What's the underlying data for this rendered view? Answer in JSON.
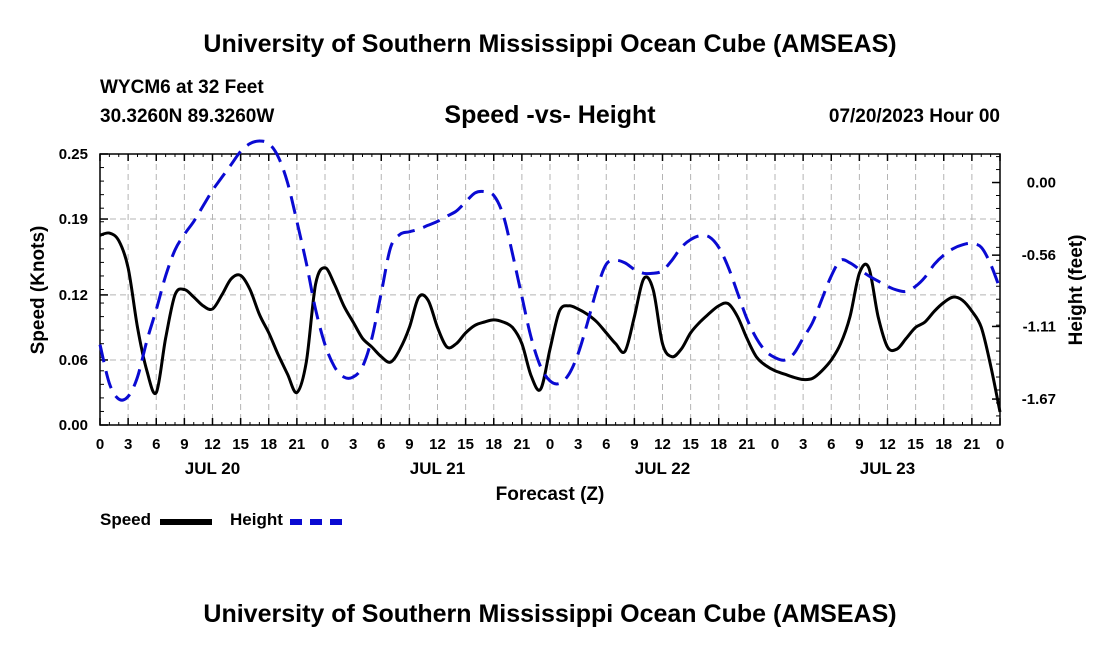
{
  "header": {
    "title": "University of Southern Mississippi Ocean Cube (AMSEAS)",
    "station": "WYCM6 at 32 Feet",
    "coords": "30.3260N  89.3260W",
    "subtitle": "Speed -vs- Height",
    "run_date": "07/20/2023 Hour 00"
  },
  "footer": {
    "title": "University of Southern Mississippi Ocean Cube (AMSEAS)"
  },
  "legend": {
    "speed_label": "Speed",
    "height_label": "Height"
  },
  "colors": {
    "speed": "#000000",
    "height": "#0a0ad2",
    "grid": "#b4b4b4"
  },
  "chart_data": {
    "type": "line",
    "title": "Speed -vs- Height",
    "xlabel": "Forecast (Z)",
    "ylabel": "Speed (Knots)",
    "ylabel_right": "Height (feet)",
    "xlim": [
      0,
      96
    ],
    "ylim": [
      0,
      0.25
    ],
    "ylim_right": [
      -1.87,
      0.22
    ],
    "grid": true,
    "legend_position": "bottom-left",
    "x_ticks": [
      0,
      3,
      6,
      9,
      12,
      15,
      18,
      21,
      24,
      27,
      30,
      33,
      36,
      39,
      42,
      45,
      48,
      51,
      54,
      57,
      60,
      63,
      66,
      69,
      72,
      75,
      78,
      81,
      84,
      87,
      90,
      93,
      96
    ],
    "x_tick_labels": [
      "0",
      "3",
      "6",
      "9",
      "12",
      "15",
      "18",
      "21",
      "0",
      "3",
      "6",
      "9",
      "12",
      "15",
      "18",
      "21",
      "0",
      "3",
      "6",
      "9",
      "12",
      "15",
      "18",
      "21",
      "0",
      "3",
      "6",
      "9",
      "12",
      "15",
      "18",
      "21",
      "0"
    ],
    "day_labels": [
      {
        "x": 12,
        "label": "JUL 20"
      },
      {
        "x": 36,
        "label": "JUL 21"
      },
      {
        "x": 60,
        "label": "JUL 22"
      },
      {
        "x": 84,
        "label": "JUL 23"
      }
    ],
    "y_ticks": [
      0,
      0.06,
      0.12,
      0.19,
      0.25
    ],
    "y_tick_labels": [
      "0.00",
      "0.06",
      "0.12",
      "0.19",
      "0.25"
    ],
    "y_right_ticks": [
      0,
      -0.56,
      -1.11,
      -1.67
    ],
    "y_right_tick_labels": [
      "0.00",
      "-0.56",
      "-1.11",
      "-1.67"
    ],
    "series": [
      {
        "name": "Speed",
        "axis": "left",
        "style": "solid",
        "x": [
          0,
          1,
          2,
          3,
          4,
          5,
          6,
          7,
          8,
          9,
          10,
          11,
          12,
          13,
          14,
          15,
          16,
          17,
          18,
          19,
          20,
          21,
          22,
          23,
          24,
          25,
          26,
          27,
          28,
          29,
          30,
          31,
          32,
          33,
          34,
          35,
          36,
          37,
          38,
          39,
          40,
          41,
          42,
          43,
          44,
          45,
          46,
          47,
          48,
          49,
          50,
          51,
          52,
          53,
          54,
          55,
          56,
          57,
          58,
          59,
          60,
          61,
          62,
          63,
          64,
          65,
          66,
          67,
          68,
          69,
          70,
          71,
          72,
          73,
          74,
          75,
          76,
          77,
          78,
          79,
          80,
          81,
          82,
          83,
          84,
          85,
          86,
          87,
          88,
          89,
          90,
          91,
          92,
          93,
          94,
          95,
          96
        ],
        "values": [
          0.175,
          0.177,
          0.17,
          0.145,
          0.09,
          0.05,
          0.03,
          0.08,
          0.12,
          0.125,
          0.118,
          0.11,
          0.107,
          0.12,
          0.135,
          0.138,
          0.125,
          0.102,
          0.085,
          0.065,
          0.047,
          0.03,
          0.058,
          0.13,
          0.145,
          0.13,
          0.11,
          0.095,
          0.08,
          0.072,
          0.063,
          0.058,
          0.07,
          0.09,
          0.118,
          0.115,
          0.09,
          0.072,
          0.075,
          0.085,
          0.092,
          0.095,
          0.097,
          0.095,
          0.09,
          0.075,
          0.045,
          0.033,
          0.07,
          0.105,
          0.11,
          0.107,
          0.102,
          0.095,
          0.085,
          0.075,
          0.068,
          0.1,
          0.135,
          0.125,
          0.075,
          0.063,
          0.07,
          0.085,
          0.095,
          0.103,
          0.11,
          0.112,
          0.1,
          0.08,
          0.063,
          0.055,
          0.05,
          0.047,
          0.044,
          0.042,
          0.043,
          0.05,
          0.06,
          0.075,
          0.1,
          0.14,
          0.145,
          0.1,
          0.072,
          0.07,
          0.08,
          0.09,
          0.095,
          0.105,
          0.113,
          0.118,
          0.115,
          0.105,
          0.09,
          0.055,
          0.012
        ]
      },
      {
        "name": "Height",
        "axis": "right",
        "style": "dashed",
        "x": [
          0,
          1,
          2,
          3,
          4,
          5,
          6,
          7,
          8,
          9,
          10,
          11,
          12,
          13,
          14,
          15,
          16,
          17,
          18,
          19,
          20,
          21,
          22,
          23,
          24,
          25,
          26,
          27,
          28,
          29,
          30,
          31,
          32,
          33,
          34,
          35,
          36,
          37,
          38,
          39,
          40,
          41,
          42,
          43,
          44,
          45,
          46,
          47,
          48,
          49,
          50,
          51,
          52,
          53,
          54,
          55,
          56,
          57,
          58,
          59,
          60,
          61,
          62,
          63,
          64,
          65,
          66,
          67,
          68,
          69,
          70,
          71,
          72,
          73,
          74,
          75,
          76,
          77,
          78,
          79,
          80,
          81,
          82,
          83,
          84,
          85,
          86,
          87,
          88,
          89,
          90,
          91,
          92,
          93,
          94,
          95,
          96
        ],
        "values": [
          -1.25,
          -1.55,
          -1.67,
          -1.65,
          -1.5,
          -1.22,
          -0.98,
          -0.72,
          -0.52,
          -0.4,
          -0.3,
          -0.18,
          -0.06,
          0.04,
          0.14,
          0.24,
          0.3,
          0.32,
          0.3,
          0.2,
          0.0,
          -0.3,
          -0.62,
          -0.98,
          -1.25,
          -1.42,
          -1.5,
          -1.5,
          -1.42,
          -1.2,
          -0.85,
          -0.5,
          -0.4,
          -0.38,
          -0.36,
          -0.33,
          -0.3,
          -0.26,
          -0.22,
          -0.15,
          -0.08,
          -0.07,
          -0.1,
          -0.25,
          -0.55,
          -0.88,
          -1.2,
          -1.42,
          -1.53,
          -1.55,
          -1.48,
          -1.32,
          -1.08,
          -0.82,
          -0.63,
          -0.6,
          -0.62,
          -0.67,
          -0.7,
          -0.7,
          -0.68,
          -0.6,
          -0.5,
          -0.44,
          -0.41,
          -0.42,
          -0.5,
          -0.65,
          -0.85,
          -1.05,
          -1.2,
          -1.3,
          -1.35,
          -1.37,
          -1.32,
          -1.2,
          -1.08,
          -0.9,
          -0.72,
          -0.6,
          -0.62,
          -0.67,
          -0.72,
          -0.76,
          -0.8,
          -0.83,
          -0.84,
          -0.8,
          -0.73,
          -0.63,
          -0.56,
          -0.51,
          -0.48,
          -0.47,
          -0.5,
          -0.63,
          -0.82
        ]
      }
    ]
  }
}
